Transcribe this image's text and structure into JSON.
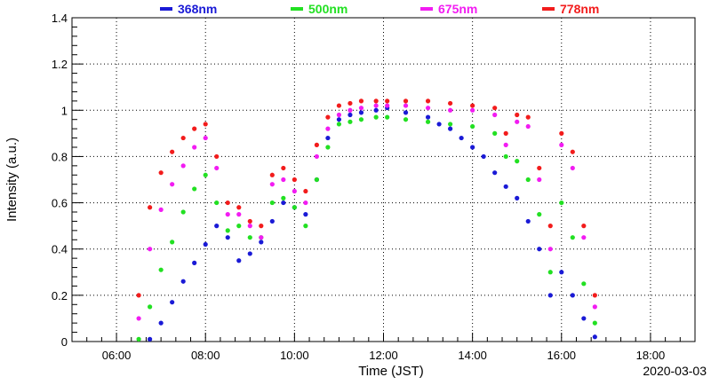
{
  "chart_data": {
    "type": "scatter",
    "xlabel": "Time (JST)",
    "ylabel": "Intensity (a.u.)",
    "date": "2020-03-03",
    "xlim": [
      "05:00",
      "19:00"
    ],
    "ylim": [
      0,
      1.4
    ],
    "x_ticks": [
      "06:00",
      "08:00",
      "10:00",
      "12:00",
      "14:00",
      "16:00",
      "18:00"
    ],
    "y_ticks": [
      "0",
      "0.2",
      "0.4",
      "0.6",
      "0.8",
      "1",
      "1.2",
      "1.4"
    ],
    "grid": true,
    "legend_position": "top",
    "series": [
      {
        "name": "368nm",
        "color": "#1a1ad6",
        "points": [
          [
            "06:45",
            0.01
          ],
          [
            "07:00",
            0.08
          ],
          [
            "07:15",
            0.17
          ],
          [
            "07:30",
            0.26
          ],
          [
            "07:45",
            0.34
          ],
          [
            "08:00",
            0.42
          ],
          [
            "08:15",
            0.5
          ],
          [
            "08:30",
            0.45
          ],
          [
            "08:45",
            0.35
          ],
          [
            "09:00",
            0.38
          ],
          [
            "09:15",
            0.43
          ],
          [
            "09:30",
            0.52
          ],
          [
            "09:45",
            0.6
          ],
          [
            "10:00",
            0.58
          ],
          [
            "10:15",
            0.55
          ],
          [
            "10:30",
            0.7
          ],
          [
            "10:45",
            0.88
          ],
          [
            "11:00",
            0.96
          ],
          [
            "11:15",
            0.98
          ],
          [
            "11:30",
            0.99
          ],
          [
            "11:50",
            1.0
          ],
          [
            "12:05",
            1.01
          ],
          [
            "12:30",
            0.99
          ],
          [
            "13:00",
            0.97
          ],
          [
            "13:15",
            0.94
          ],
          [
            "13:30",
            0.92
          ],
          [
            "13:45",
            0.88
          ],
          [
            "14:00",
            0.84
          ],
          [
            "14:15",
            0.8
          ],
          [
            "14:30",
            0.73
          ],
          [
            "14:45",
            0.67
          ],
          [
            "15:00",
            0.62
          ],
          [
            "15:15",
            0.52
          ],
          [
            "15:30",
            0.4
          ],
          [
            "15:45",
            0.2
          ],
          [
            "16:00",
            0.3
          ],
          [
            "16:15",
            0.2
          ],
          [
            "16:30",
            0.1
          ],
          [
            "16:45",
            0.02
          ]
        ]
      },
      {
        "name": "500nm",
        "color": "#22e022",
        "points": [
          [
            "06:30",
            0.01
          ],
          [
            "06:45",
            0.15
          ],
          [
            "07:00",
            0.31
          ],
          [
            "07:15",
            0.43
          ],
          [
            "07:30",
            0.56
          ],
          [
            "07:45",
            0.66
          ],
          [
            "08:00",
            0.72
          ],
          [
            "08:15",
            0.6
          ],
          [
            "08:30",
            0.48
          ],
          [
            "08:45",
            0.5
          ],
          [
            "09:00",
            0.45
          ],
          [
            "09:15",
            0.45
          ],
          [
            "09:30",
            0.6
          ],
          [
            "09:45",
            0.62
          ],
          [
            "10:00",
            0.58
          ],
          [
            "10:15",
            0.5
          ],
          [
            "10:30",
            0.7
          ],
          [
            "10:45",
            0.84
          ],
          [
            "11:00",
            0.94
          ],
          [
            "11:15",
            0.95
          ],
          [
            "11:30",
            0.96
          ],
          [
            "11:50",
            0.97
          ],
          [
            "12:05",
            0.97
          ],
          [
            "12:30",
            0.96
          ],
          [
            "13:00",
            0.95
          ],
          [
            "13:30",
            0.94
          ],
          [
            "14:00",
            0.93
          ],
          [
            "14:30",
            0.9
          ],
          [
            "14:45",
            0.8
          ],
          [
            "15:00",
            0.78
          ],
          [
            "15:15",
            0.7
          ],
          [
            "15:30",
            0.55
          ],
          [
            "15:45",
            0.3
          ],
          [
            "16:00",
            0.6
          ],
          [
            "16:15",
            0.45
          ],
          [
            "16:30",
            0.25
          ],
          [
            "16:45",
            0.08
          ]
        ]
      },
      {
        "name": "675nm",
        "color": "#f21cf2",
        "points": [
          [
            "06:30",
            0.1
          ],
          [
            "06:45",
            0.4
          ],
          [
            "07:00",
            0.57
          ],
          [
            "07:15",
            0.68
          ],
          [
            "07:30",
            0.76
          ],
          [
            "07:45",
            0.84
          ],
          [
            "08:00",
            0.88
          ],
          [
            "08:15",
            0.75
          ],
          [
            "08:30",
            0.55
          ],
          [
            "08:45",
            0.55
          ],
          [
            "09:00",
            0.5
          ],
          [
            "09:15",
            0.45
          ],
          [
            "09:30",
            0.68
          ],
          [
            "09:45",
            0.7
          ],
          [
            "10:00",
            0.65
          ],
          [
            "10:15",
            0.6
          ],
          [
            "10:30",
            0.8
          ],
          [
            "10:45",
            0.92
          ],
          [
            "11:00",
            0.98
          ],
          [
            "11:15",
            1.0
          ],
          [
            "11:30",
            1.01
          ],
          [
            "11:50",
            1.02
          ],
          [
            "12:05",
            1.02
          ],
          [
            "12:30",
            1.02
          ],
          [
            "13:00",
            1.01
          ],
          [
            "13:30",
            1.0
          ],
          [
            "14:00",
            1.0
          ],
          [
            "14:30",
            0.98
          ],
          [
            "14:45",
            0.85
          ],
          [
            "15:00",
            0.95
          ],
          [
            "15:15",
            0.93
          ],
          [
            "15:30",
            0.7
          ],
          [
            "15:45",
            0.4
          ],
          [
            "16:00",
            0.85
          ],
          [
            "16:15",
            0.75
          ],
          [
            "16:30",
            0.45
          ],
          [
            "16:45",
            0.15
          ]
        ]
      },
      {
        "name": "778nm",
        "color": "#f21c1c",
        "points": [
          [
            "06:30",
            0.2
          ],
          [
            "06:45",
            0.58
          ],
          [
            "07:00",
            0.73
          ],
          [
            "07:15",
            0.82
          ],
          [
            "07:30",
            0.88
          ],
          [
            "07:45",
            0.92
          ],
          [
            "08:00",
            0.94
          ],
          [
            "08:15",
            0.8
          ],
          [
            "08:30",
            0.6
          ],
          [
            "08:45",
            0.58
          ],
          [
            "09:00",
            0.52
          ],
          [
            "09:15",
            0.5
          ],
          [
            "09:30",
            0.72
          ],
          [
            "09:45",
            0.75
          ],
          [
            "10:00",
            0.7
          ],
          [
            "10:15",
            0.65
          ],
          [
            "10:30",
            0.85
          ],
          [
            "10:45",
            0.97
          ],
          [
            "11:00",
            1.02
          ],
          [
            "11:15",
            1.03
          ],
          [
            "11:30",
            1.04
          ],
          [
            "11:50",
            1.04
          ],
          [
            "12:05",
            1.04
          ],
          [
            "12:30",
            1.04
          ],
          [
            "13:00",
            1.04
          ],
          [
            "13:30",
            1.03
          ],
          [
            "14:00",
            1.02
          ],
          [
            "14:30",
            1.01
          ],
          [
            "14:45",
            0.9
          ],
          [
            "15:00",
            0.98
          ],
          [
            "15:15",
            0.97
          ],
          [
            "15:30",
            0.75
          ],
          [
            "15:45",
            0.5
          ],
          [
            "16:00",
            0.9
          ],
          [
            "16:15",
            0.82
          ],
          [
            "16:30",
            0.5
          ],
          [
            "16:45",
            0.2
          ]
        ]
      }
    ]
  }
}
